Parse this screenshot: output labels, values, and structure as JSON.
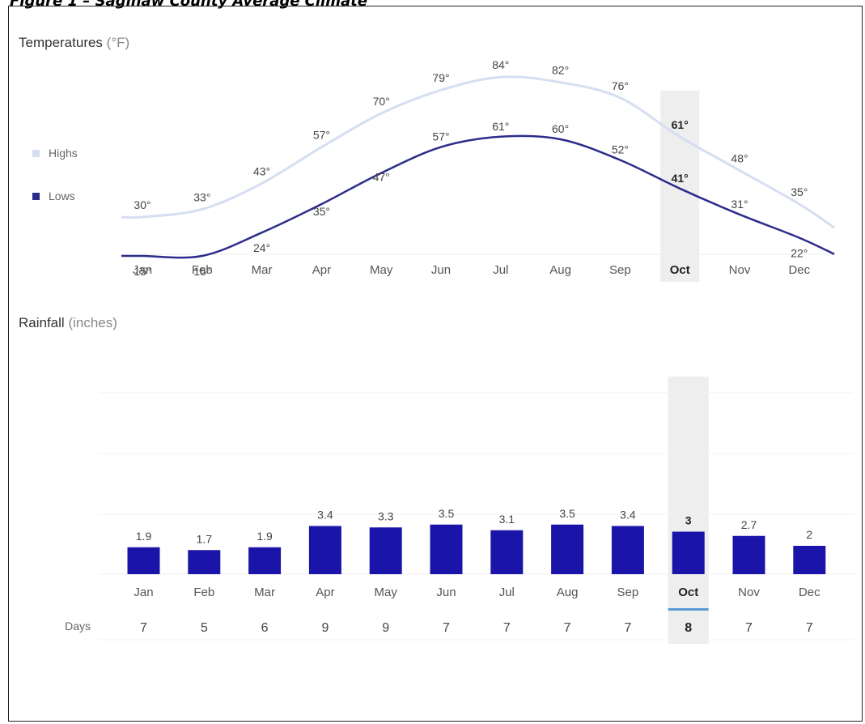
{
  "figure_caption": "Figure 1 – Saginaw County Average Climate",
  "temperature_section": {
    "title": "Temperatures",
    "unit": "(°F)"
  },
  "rainfall_section": {
    "title": "Rainfall",
    "unit": "(inches)"
  },
  "days_label": "Days",
  "highlight_month": "Oct",
  "colors": {
    "highs": "#d5dff0",
    "lows": "#2c2c8c",
    "bars": "#1a15a8",
    "highlight_band": "#eeeeee",
    "highlight_underline": "#5b9bd5"
  },
  "chart_data": [
    {
      "type": "line",
      "categories": [
        "Jan",
        "Feb",
        "Mar",
        "Apr",
        "May",
        "Jun",
        "Jul",
        "Aug",
        "Sep",
        "Oct",
        "Nov",
        "Dec"
      ],
      "series": [
        {
          "name": "Highs",
          "values": [
            30,
            33,
            43,
            57,
            70,
            79,
            84,
            82,
            76,
            61,
            48,
            35
          ],
          "labels": [
            "30°",
            "33°",
            "43°",
            "57°",
            "70°",
            "79°",
            "84°",
            "82°",
            "76°",
            "61°",
            "48°",
            "35°"
          ]
        },
        {
          "name": "Lows",
          "values": [
            15,
            15,
            24,
            35,
            47,
            57,
            61,
            60,
            52,
            41,
            31,
            22
          ],
          "labels": [
            "15°",
            "15°",
            "24°",
            "35°",
            "47°",
            "57°",
            "61°",
            "60°",
            "52°",
            "41°",
            "31°",
            "22°"
          ]
        }
      ],
      "legend": "left"
    },
    {
      "type": "bar",
      "categories": [
        "Jan",
        "Feb",
        "Mar",
        "Apr",
        "May",
        "Jun",
        "Jul",
        "Aug",
        "Sep",
        "Oct",
        "Nov",
        "Dec"
      ],
      "values": [
        1.9,
        1.7,
        1.9,
        3.4,
        3.3,
        3.5,
        3.1,
        3.5,
        3.4,
        3,
        2.7,
        2
      ],
      "labels": [
        "1.9",
        "1.7",
        "1.9",
        "3.4",
        "3.3",
        "3.5",
        "3.1",
        "3.5",
        "3.4",
        "3",
        "2.7",
        "2"
      ],
      "days": [
        "7",
        "5",
        "6",
        "9",
        "9",
        "7",
        "7",
        "7",
        "7",
        "8",
        "7",
        "7"
      ],
      "grid": true
    }
  ]
}
